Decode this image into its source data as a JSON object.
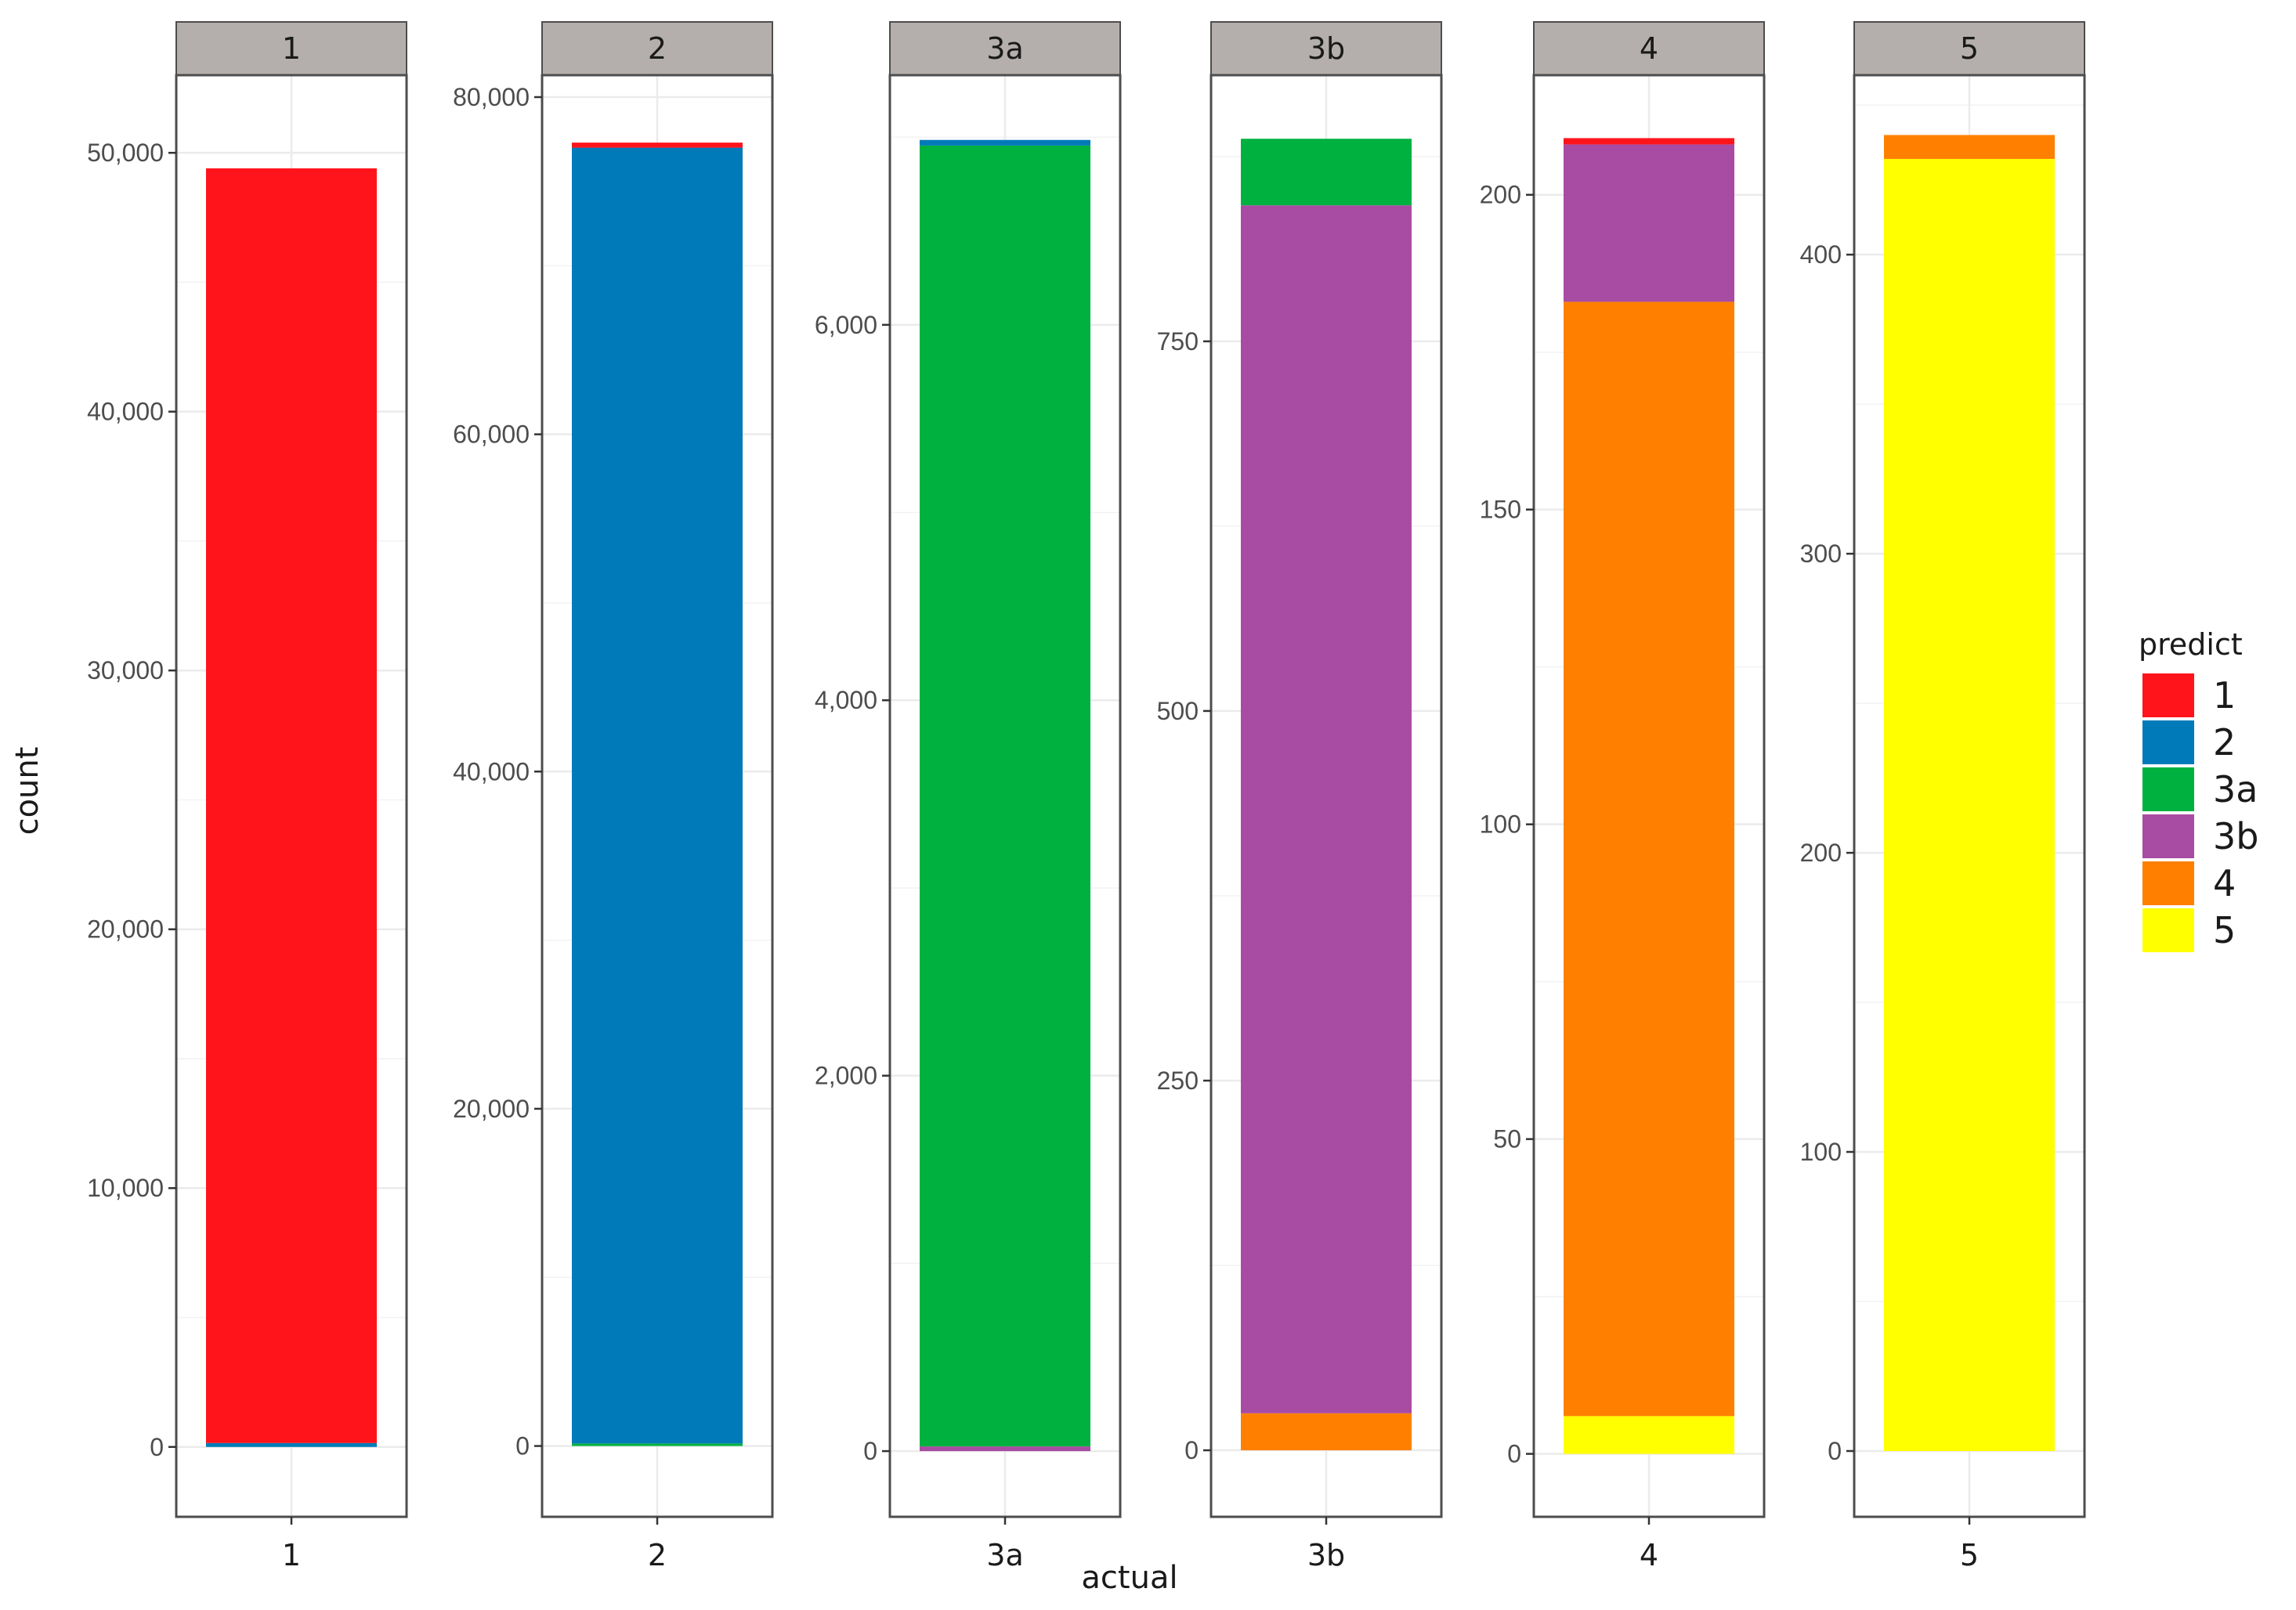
{
  "chart_data": {
    "type": "bar",
    "stacked": true,
    "faceted": true,
    "xlabel": "actual",
    "ylabel": "count",
    "grid": true,
    "legend": {
      "title": "predict",
      "position": "right",
      "entries": [
        {
          "key": "1",
          "label": "1",
          "color": "#ff141c"
        },
        {
          "key": "2",
          "label": "2",
          "color": "#007ab8"
        },
        {
          "key": "3a",
          "label": "3a",
          "color": "#00b140"
        },
        {
          "key": "3b",
          "label": "3b",
          "color": "#a84ba3"
        },
        {
          "key": "4",
          "label": "4",
          "color": "#ff8000"
        },
        {
          "key": "5",
          "label": "5",
          "color": "#ffff00"
        }
      ]
    },
    "facets": [
      {
        "label": "1",
        "category": "1",
        "ylim": [
          -2700,
          53000
        ],
        "ticks": [
          0,
          10000,
          20000,
          30000,
          40000,
          50000
        ],
        "tick_labels": [
          "0",
          "10,000",
          "20,000",
          "30,000",
          "40,000",
          "50,000"
        ],
        "segments": [
          {
            "predict": "2",
            "value": 150
          },
          {
            "predict": "1",
            "value": 49250
          }
        ]
      },
      {
        "label": "2",
        "category": "2",
        "ylim": [
          -4200,
          81300
        ],
        "ticks": [
          0,
          20000,
          40000,
          60000,
          80000
        ],
        "tick_labels": [
          "0",
          "20,000",
          "40,000",
          "60,000",
          "80,000"
        ],
        "segments": [
          {
            "predict": "3a",
            "value": 150
          },
          {
            "predict": "2",
            "value": 76850
          },
          {
            "predict": "1",
            "value": 300
          }
        ]
      },
      {
        "label": "3a",
        "category": "3a",
        "ylim": [
          -350,
          7330
        ],
        "ticks": [
          0,
          2000,
          4000,
          6000
        ],
        "tick_labels": [
          "0",
          "2,000",
          "4,000",
          "6,000"
        ],
        "segments": [
          {
            "predict": "3b",
            "value": 25
          },
          {
            "predict": "3a",
            "value": 6930
          },
          {
            "predict": "2",
            "value": 30
          }
        ]
      },
      {
        "label": "3b",
        "category": "3b",
        "ylim": [
          -45,
          930
        ],
        "ticks": [
          0,
          250,
          500,
          750
        ],
        "tick_labels": [
          "0",
          "250",
          "500",
          "750"
        ],
        "segments": [
          {
            "predict": "4",
            "value": 25
          },
          {
            "predict": "3b",
            "value": 817
          },
          {
            "predict": "3a",
            "value": 45
          }
        ]
      },
      {
        "label": "4",
        "category": "4",
        "ylim": [
          -10,
          219
        ],
        "ticks": [
          0,
          50,
          100,
          150,
          200
        ],
        "tick_labels": [
          "0",
          "50",
          "100",
          "150",
          "200"
        ],
        "segments": [
          {
            "predict": "5",
            "value": 6
          },
          {
            "predict": "4",
            "value": 177
          },
          {
            "predict": "3b",
            "value": 25
          },
          {
            "predict": "1",
            "value": 1
          }
        ]
      },
      {
        "label": "5",
        "category": "5",
        "ylim": [
          -22,
          460
        ],
        "ticks": [
          0,
          100,
          200,
          300,
          400
        ],
        "tick_labels": [
          "0",
          "100",
          "200",
          "300",
          "400"
        ],
        "segments": [
          {
            "predict": "5",
            "value": 432
          },
          {
            "predict": "4",
            "value": 8
          }
        ]
      }
    ]
  }
}
